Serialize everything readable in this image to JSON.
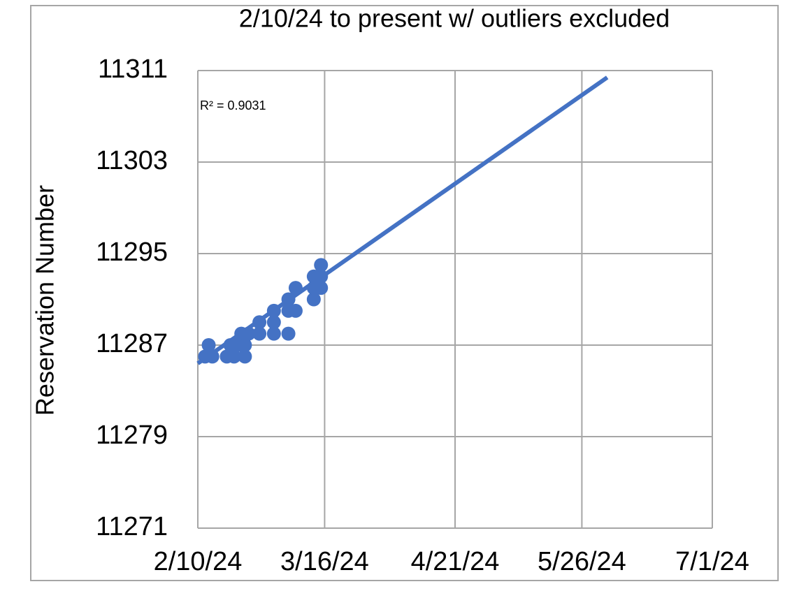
{
  "chart_data": {
    "type": "scatter",
    "title": "2/10/24 to present w/ outliers excluded",
    "y_label": "Reservation Number",
    "annotation": "R² = 0.9031",
    "color": "#4472c4",
    "grid": true,
    "xlim": [
      "2/10/24",
      "7/1/24"
    ],
    "xticks": [
      "2/10/24",
      "3/16/24",
      "4/21/24",
      "5/26/24",
      "7/1/24"
    ],
    "ylim": [
      11271,
      11311
    ],
    "yticks": [
      11271,
      11279,
      11287,
      11295,
      11303,
      11311
    ],
    "x": [
      "2/12/24",
      "2/13/24",
      "2/14/24",
      "2/18/24",
      "2/19/24",
      "2/20/24",
      "2/21/24",
      "2/22/24",
      "2/23/24",
      "2/23/24",
      "2/24/24",
      "2/27/24",
      "2/27/24",
      "3/2/24",
      "3/2/24",
      "3/2/24",
      "3/6/24",
      "3/6/24",
      "3/6/24",
      "3/8/24",
      "3/8/24",
      "3/13/24",
      "3/13/24",
      "3/13/24",
      "3/15/24",
      "3/15/24",
      "3/15/24"
    ],
    "values": [
      11286,
      11287,
      11286,
      11286,
      11287,
      11286,
      11287,
      11288,
      11286,
      11287,
      11288,
      11289,
      11288,
      11289,
      11288,
      11290,
      11288,
      11290,
      11291,
      11290,
      11292,
      11291,
      11292,
      11293,
      11293,
      11292,
      11294
    ],
    "trendline": {
      "x": [
        "2/10/24",
        "6/2/24"
      ],
      "values": [
        11285.4,
        11310.4
      ]
    }
  }
}
